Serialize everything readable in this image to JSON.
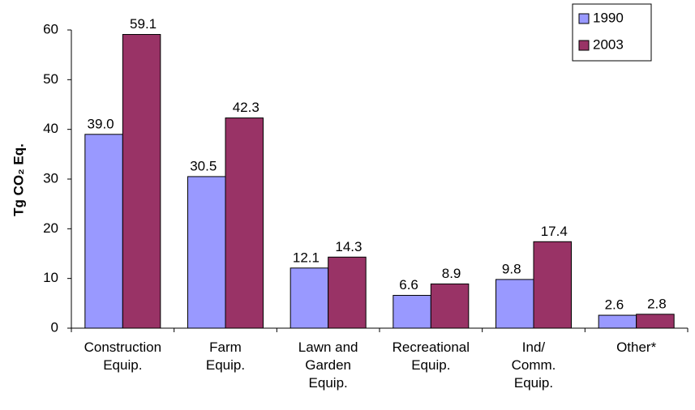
{
  "chart_data": {
    "type": "bar",
    "y_label": "Tg CO₂ Eq.",
    "categories": [
      "Construction\nEquip.",
      "Farm\nEquip.",
      "Lawn and\nGarden\nEquip.",
      "Recreational\nEquip.",
      "Ind/\nComm.\nEquip.",
      "Other*"
    ],
    "series": [
      {
        "name": "1990",
        "color": "#9999ff",
        "values": [
          39.0,
          30.5,
          12.1,
          6.6,
          9.8,
          2.6
        ],
        "value_labels": [
          "39.0",
          "30.5",
          "12.1",
          "6.6",
          "9.8",
          "2.6"
        ]
      },
      {
        "name": "2003",
        "color": "#993366",
        "values": [
          59.1,
          42.3,
          14.3,
          8.9,
          17.4,
          2.8
        ],
        "value_labels": [
          "59.1",
          "42.3",
          "14.3",
          "8.9",
          "17.4",
          "2.8"
        ]
      }
    ],
    "ylim": [
      0,
      60
    ],
    "yticks": [
      0,
      10,
      20,
      30,
      40,
      50,
      60
    ],
    "grid": false,
    "legend": "upper right"
  }
}
